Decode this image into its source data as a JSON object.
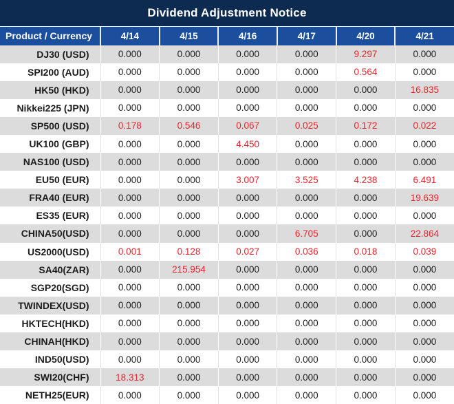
{
  "title": "Dividend Adjustment Notice",
  "colors": {
    "title_bg": "#0d2a50",
    "header_bg": "#1b4f9e",
    "header_text": "#ffffff",
    "row_shaded_bg": "#dcdcdc",
    "row_plain_bg": "#ffffff",
    "value_text": "#1c1c1c",
    "highlight_red": "#e8232b"
  },
  "table": {
    "product_header": "Product / Currency",
    "date_headers": [
      "4/14",
      "4/15",
      "4/16",
      "4/17",
      "4/20",
      "4/21"
    ],
    "zero_value": "0.000",
    "rows": [
      {
        "product": "DJ30 (USD)",
        "values": [
          "0.000",
          "0.000",
          "0.000",
          "0.000",
          "9.297",
          "0.000"
        ]
      },
      {
        "product": "SPI200 (AUD)",
        "values": [
          "0.000",
          "0.000",
          "0.000",
          "0.000",
          "0.564",
          "0.000"
        ]
      },
      {
        "product": "HK50 (HKD)",
        "values": [
          "0.000",
          "0.000",
          "0.000",
          "0.000",
          "0.000",
          "16.835"
        ]
      },
      {
        "product": "Nikkei225 (JPN)",
        "values": [
          "0.000",
          "0.000",
          "0.000",
          "0.000",
          "0.000",
          "0.000"
        ]
      },
      {
        "product": "SP500 (USD)",
        "values": [
          "0.178",
          "0.546",
          "0.067",
          "0.025",
          "0.172",
          "0.022"
        ]
      },
      {
        "product": "UK100 (GBP)",
        "values": [
          "0.000",
          "0.000",
          "4.450",
          "0.000",
          "0.000",
          "0.000"
        ]
      },
      {
        "product": "NAS100 (USD)",
        "values": [
          "0.000",
          "0.000",
          "0.000",
          "0.000",
          "0.000",
          "0.000"
        ]
      },
      {
        "product": "EU50 (EUR)",
        "values": [
          "0.000",
          "0.000",
          "3.007",
          "3.525",
          "4.238",
          "6.491"
        ]
      },
      {
        "product": "FRA40 (EUR)",
        "values": [
          "0.000",
          "0.000",
          "0.000",
          "0.000",
          "0.000",
          "19.639"
        ]
      },
      {
        "product": "ES35 (EUR)",
        "values": [
          "0.000",
          "0.000",
          "0.000",
          "0.000",
          "0.000",
          "0.000"
        ]
      },
      {
        "product": "CHINA50(USD)",
        "values": [
          "0.000",
          "0.000",
          "0.000",
          "6.705",
          "0.000",
          "22.864"
        ]
      },
      {
        "product": "US2000(USD)",
        "values": [
          "0.001",
          "0.128",
          "0.027",
          "0.036",
          "0.018",
          "0.039"
        ]
      },
      {
        "product": "SA40(ZAR)",
        "values": [
          "0.000",
          "215.954",
          "0.000",
          "0.000",
          "0.000",
          "0.000"
        ]
      },
      {
        "product": "SGP20(SGD)",
        "values": [
          "0.000",
          "0.000",
          "0.000",
          "0.000",
          "0.000",
          "0.000"
        ]
      },
      {
        "product": "TWINDEX(USD)",
        "values": [
          "0.000",
          "0.000",
          "0.000",
          "0.000",
          "0.000",
          "0.000"
        ]
      },
      {
        "product": "HKTECH(HKD)",
        "values": [
          "0.000",
          "0.000",
          "0.000",
          "0.000",
          "0.000",
          "0.000"
        ]
      },
      {
        "product": "CHINAH(HKD)",
        "values": [
          "0.000",
          "0.000",
          "0.000",
          "0.000",
          "0.000",
          "0.000"
        ]
      },
      {
        "product": "IND50(USD)",
        "values": [
          "0.000",
          "0.000",
          "0.000",
          "0.000",
          "0.000",
          "0.000"
        ]
      },
      {
        "product": "SWI20(CHF)",
        "values": [
          "18.313",
          "0.000",
          "0.000",
          "0.000",
          "0.000",
          "0.000"
        ]
      },
      {
        "product": "NETH25(EUR)",
        "values": [
          "0.000",
          "0.000",
          "0.000",
          "0.000",
          "0.000",
          "0.000"
        ]
      }
    ]
  }
}
